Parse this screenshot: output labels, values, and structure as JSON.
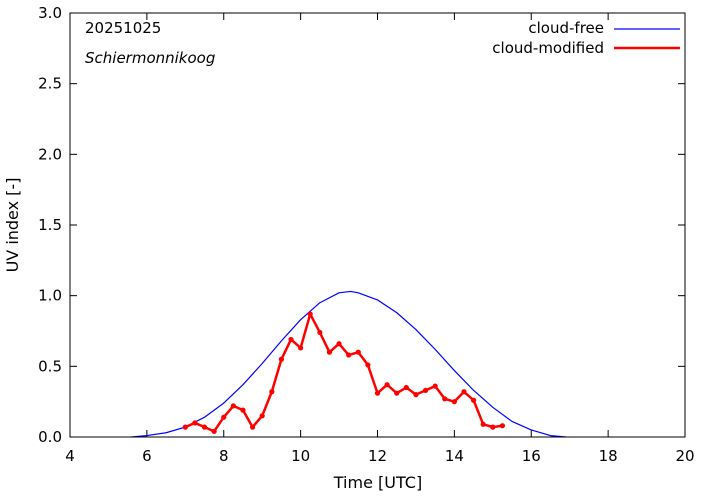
{
  "chart_data": {
    "type": "line",
    "annotations": [
      "20251025",
      "Schiermonnikoog"
    ],
    "xlabel": "Time  [UTC]",
    "ylabel": "UV index  [-]",
    "xlim": [
      4,
      20
    ],
    "ylim": [
      0,
      3.0
    ],
    "x_ticks": [
      4,
      6,
      8,
      10,
      12,
      14,
      16,
      18,
      20
    ],
    "x_tick_labels": [
      "4",
      "6",
      "8",
      "10",
      "12",
      "14",
      "16",
      "18",
      "20"
    ],
    "y_ticks": [
      0,
      0.5,
      1.0,
      1.5,
      2.0,
      2.5,
      3.0
    ],
    "y_tick_labels": [
      "0.0",
      "0.5",
      "1.0",
      "1.5",
      "2.0",
      "2.5",
      "3.0"
    ],
    "grid": false,
    "legend_position": "top-right",
    "series": [
      {
        "name": "cloud-free",
        "color": "#0000ff",
        "markers": false,
        "x": [
          5.6,
          6.0,
          6.5,
          7.0,
          7.5,
          8.0,
          8.5,
          9.0,
          9.5,
          10.0,
          10.5,
          11.0,
          11.3,
          11.5,
          12.0,
          12.5,
          13.0,
          13.5,
          14.0,
          14.5,
          15.0,
          15.5,
          16.0,
          16.5,
          16.9
        ],
        "y": [
          0.0,
          0.01,
          0.03,
          0.07,
          0.14,
          0.24,
          0.37,
          0.52,
          0.68,
          0.83,
          0.95,
          1.02,
          1.03,
          1.02,
          0.97,
          0.88,
          0.76,
          0.62,
          0.47,
          0.33,
          0.21,
          0.11,
          0.05,
          0.01,
          0.0
        ]
      },
      {
        "name": "cloud-modified",
        "color": "#ff0000",
        "markers": true,
        "x": [
          7.0,
          7.25,
          7.5,
          7.75,
          8.0,
          8.25,
          8.5,
          8.75,
          9.0,
          9.25,
          9.5,
          9.75,
          10.0,
          10.25,
          10.5,
          10.75,
          11.0,
          11.25,
          11.5,
          11.75,
          12.0,
          12.25,
          12.5,
          12.75,
          13.0,
          13.25,
          13.5,
          13.75,
          14.0,
          14.25,
          14.5,
          14.75,
          15.0,
          15.25
        ],
        "y": [
          0.07,
          0.1,
          0.07,
          0.04,
          0.14,
          0.22,
          0.19,
          0.07,
          0.15,
          0.32,
          0.55,
          0.69,
          0.63,
          0.87,
          0.74,
          0.6,
          0.66,
          0.58,
          0.6,
          0.51,
          0.31,
          0.37,
          0.31,
          0.35,
          0.3,
          0.33,
          0.36,
          0.27,
          0.25,
          0.32,
          0.26,
          0.09,
          0.07,
          0.08
        ]
      }
    ]
  }
}
